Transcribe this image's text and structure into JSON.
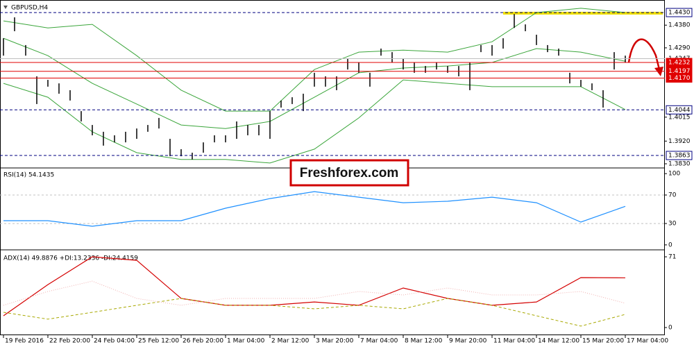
{
  "chart_data": [
    {
      "type": "ohlc",
      "title": "GBPUSD,H4",
      "color": "#000000",
      "high": [
        1.4328,
        1.4411,
        1.4301,
        1.4177,
        1.4163,
        1.4149,
        1.4122,
        1.4039,
        1.3984,
        1.3957,
        1.3943,
        1.3957,
        1.397,
        1.3984,
        1.4012,
        1.3929,
        1.3888,
        1.3874,
        1.3915,
        1.3943,
        1.3943,
        1.3998,
        1.3984,
        1.3984,
        1.4039,
        1.4081,
        1.4094,
        1.4108,
        1.4191,
        1.4177,
        1.4177,
        1.4246,
        1.4232,
        1.4191,
        1.4287,
        1.4273,
        1.4246,
        1.4232,
        1.4218,
        1.4232,
        1.4218,
        1.4218,
        1.4232,
        1.4301,
        1.4301,
        1.4328,
        1.4424,
        1.4383,
        1.4342,
        1.4301,
        1.4287,
        1.4191,
        1.4163,
        1.4149,
        1.4122,
        1.4273,
        1.4259
      ],
      "low": [
        1.4259,
        1.4356,
        1.4259,
        1.4067,
        1.4136,
        1.4108,
        1.4081,
        1.3998,
        1.3943,
        1.3902,
        1.3915,
        1.3915,
        1.3929,
        1.3957,
        1.397,
        1.386,
        1.386,
        1.3847,
        1.3874,
        1.3915,
        1.3915,
        1.3929,
        1.3943,
        1.3943,
        1.3929,
        1.4053,
        1.4067,
        1.4039,
        1.4136,
        1.4136,
        1.4122,
        1.4204,
        1.4191,
        1.4136,
        1.4259,
        1.4232,
        1.4204,
        1.4191,
        1.4191,
        1.4204,
        1.4191,
        1.4177,
        1.4122,
        1.4273,
        1.4259,
        1.4287,
        1.4369,
        1.4356,
        1.4301,
        1.4273,
        1.4259,
        1.4149,
        1.4136,
        1.4122,
        1.4053,
        1.4204,
        1.4232
      ],
      "bands": {
        "color": "#3aa53a",
        "upper": [
          1.4397,
          1.4369,
          1.4383,
          1.4259,
          1.4122,
          1.4039,
          1.4039,
          1.4204,
          1.4273,
          1.4281,
          1.4273,
          1.4314,
          1.443,
          1.4447,
          1.443
        ],
        "middle": [
          1.4328,
          1.4259,
          1.4149,
          1.4067,
          1.3984,
          1.397,
          1.3998,
          1.4094,
          1.4191,
          1.421,
          1.4218,
          1.4232,
          1.4287,
          1.4273,
          1.4237
        ],
        "lower": [
          1.4149,
          1.4094,
          1.3957,
          1.3874,
          1.3847,
          1.3847,
          1.3833,
          1.3888,
          1.4012,
          1.4163,
          1.4149,
          1.4136,
          1.4136,
          1.4136,
          1.4045
        ]
      },
      "ylim": [
        1.3819,
        1.4466
      ],
      "yticks": [
        {
          "value": 1.438,
          "label": "1.4380"
        },
        {
          "value": 1.429,
          "label": "1.4290"
        },
        {
          "value": 1.4015,
          "label": "1.4015"
        },
        {
          "value": 1.392,
          "label": "1.3920"
        },
        {
          "value": 1.383,
          "label": "1.3830"
        }
      ],
      "levels": [
        {
          "value": 1.4247,
          "label": "1.4247",
          "color": "#c0c0c0",
          "style": "solid"
        },
        {
          "value": 1.443,
          "label": "1.4430",
          "color": "#000080",
          "style": "dashed"
        },
        {
          "value": 1.4232,
          "label": "1.4232",
          "color": "#e00000",
          "style": "solid"
        },
        {
          "value": 1.4197,
          "label": "1.4197",
          "color": "#e00000",
          "style": "solid"
        },
        {
          "value": 1.417,
          "label": "1.4170",
          "color": "#e00000",
          "style": "solid"
        },
        {
          "value": 1.4044,
          "label": "1.4044",
          "color": "#000080",
          "style": "dashed"
        },
        {
          "value": 1.3863,
          "label": "1.3863",
          "color": "#000080",
          "style": "dashed"
        }
      ],
      "xticks": [
        {
          "value": 0,
          "label": "19 Feb 2016"
        },
        {
          "value": 4,
          "label": "22 Feb 20:00"
        },
        {
          "value": 8,
          "label": "24 Feb 04:00"
        },
        {
          "value": 12,
          "label": "25 Feb 12:00"
        },
        {
          "value": 16,
          "label": "26 Feb 20:00"
        },
        {
          "value": 20,
          "label": "1 Mar 04:00"
        },
        {
          "value": 24,
          "label": "2 Mar 12:00"
        },
        {
          "value": 28,
          "label": "3 Mar 20:00"
        },
        {
          "value": 32,
          "label": "7 Mar 04:00"
        },
        {
          "value": 36,
          "label": "8 Mar 12:00"
        },
        {
          "value": 40,
          "label": "9 Mar 20:00"
        },
        {
          "value": 44,
          "label": "11 Mar 04:00"
        },
        {
          "value": 48,
          "label": "14 Mar 12:00"
        },
        {
          "value": 52,
          "label": "15 Mar 20:00"
        },
        {
          "value": 56,
          "label": "17 Mar 04:00"
        }
      ]
    },
    {
      "type": "line",
      "title": "RSI(14) 54.1435",
      "series": [
        {
          "color": "#1e90ff",
          "style": "solid",
          "values": [
            34.0,
            34.0,
            26.2,
            34.0,
            34.0,
            51.5,
            65.0,
            74.8,
            67.0,
            59.2,
            61.2,
            67.0,
            59.2,
            32.0,
            54.1
          ]
        }
      ],
      "ylim": [
        -5,
        107
      ],
      "yticks": [
        100,
        70,
        30,
        0
      ],
      "levels": [
        70,
        30
      ]
    },
    {
      "type": "line",
      "title": "ADX(14) 49.8876 +DI:13.2336 -DI:24.4159",
      "series": [
        {
          "color": "#d40000",
          "style": "solid",
          "values": [
            11.8,
            43.1,
            71.0,
            67.5,
            29.2,
            22.3,
            22.3,
            25.7,
            22.3,
            39.7,
            29.2,
            22.3,
            25.7,
            50.1,
            49.9
          ]
        },
        {
          "color": "#a8a800",
          "style": "dashed",
          "values": [
            15.3,
            8.4,
            15.3,
            22.3,
            29.2,
            22.3,
            22.3,
            18.8,
            22.3,
            18.8,
            29.2,
            22.3,
            11.8,
            1.4,
            13.2
          ]
        },
        {
          "color": "#f0b0b0",
          "style": "dotted",
          "values": [
            22.3,
            36.2,
            46.6,
            29.2,
            22.3,
            29.2,
            29.2,
            29.2,
            36.2,
            32.7,
            39.7,
            32.7,
            32.7,
            36.2,
            24.4
          ]
        }
      ],
      "ylim": [
        -7.7,
        75.9
      ],
      "yticks": [
        71,
        0
      ]
    }
  ],
  "watermark": "Freshforex.com"
}
